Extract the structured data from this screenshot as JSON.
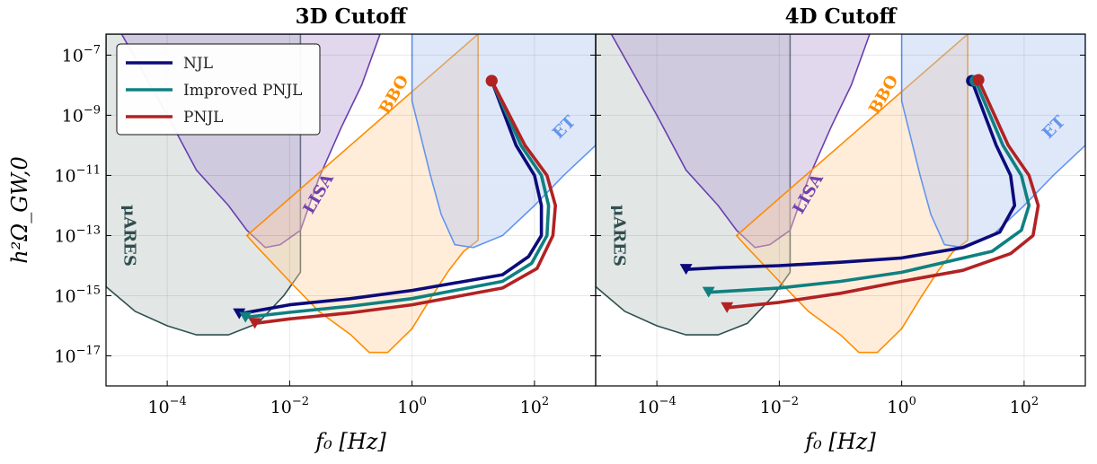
{
  "chart_data": {
    "type": "line",
    "ylabel": "h²Ω_GW,0",
    "xlabel": "f₀ [Hz]",
    "log_x": true,
    "log_y": true,
    "xlim": [
      1e-05,
      1000
    ],
    "ylim": [
      1e-18,
      5e-07
    ],
    "grid": true,
    "legend": {
      "placement": "top-left",
      "entries": [
        {
          "name": "NJL",
          "color": "#0b0b7a"
        },
        {
          "name": "Improved PNJL",
          "color": "#0f8080"
        },
        {
          "name": "PNJL",
          "color": "#b22222"
        }
      ]
    },
    "regions": [
      {
        "name": "μARES",
        "fill": "#b9c6c3",
        "edge": "#2f4f4f",
        "text_color": "#2f4f4f",
        "points": [
          [
            1e-05,
            2e-15
          ],
          [
            3e-05,
            3e-16
          ],
          [
            0.0001,
            1e-16
          ],
          [
            0.0003,
            5e-17
          ],
          [
            0.001,
            5e-17
          ],
          [
            0.003,
            1.2e-16
          ],
          [
            0.008,
            1e-15
          ],
          [
            0.015,
            6e-15
          ],
          [
            0.015,
            5e-07
          ],
          [
            1e-05,
            5e-07
          ]
        ]
      },
      {
        "name": "LISA",
        "fill": "#b7a3d3",
        "edge": "#6a3fb0",
        "text_color": "#7040b0",
        "points": [
          [
            1.8e-05,
            5e-07
          ],
          [
            0.0001,
            1e-09
          ],
          [
            0.0003,
            1.5e-11
          ],
          [
            0.001,
            1e-12
          ],
          [
            0.002,
            1.5e-13
          ],
          [
            0.004,
            4e-14
          ],
          [
            0.007,
            5e-14
          ],
          [
            0.015,
            1.5e-13
          ],
          [
            0.03,
            8e-12
          ],
          [
            0.07,
            4e-10
          ],
          [
            0.15,
            1e-08
          ],
          [
            0.3,
            5e-07
          ]
        ]
      },
      {
        "name": "BBO",
        "fill": "#ffd5a8",
        "edge": "#ff8c00",
        "text_color": "#ff8c00",
        "points": [
          [
            0.002,
            1e-13
          ],
          [
            0.003,
            4e-14
          ],
          [
            0.01,
            3e-15
          ],
          [
            0.03,
            3e-16
          ],
          [
            0.1,
            5e-17
          ],
          [
            0.2,
            1.3e-17
          ],
          [
            0.4,
            1.3e-17
          ],
          [
            1,
            8e-17
          ],
          [
            2,
            8e-16
          ],
          [
            4,
            7e-15
          ],
          [
            7,
            3e-14
          ],
          [
            12,
            7e-14
          ],
          [
            12,
            5e-07
          ],
          [
            0,
            0
          ]
        ]
      },
      {
        "name": "ET",
        "fill": "#b3c8f0",
        "edge": "#6495ed",
        "text_color": "#6495ed",
        "points": [
          [
            1,
            5e-07
          ],
          [
            1,
            3e-09
          ],
          [
            2,
            1e-11
          ],
          [
            3,
            5e-13
          ],
          [
            5,
            5e-14
          ],
          [
            10,
            4e-14
          ],
          [
            30,
            1e-13
          ],
          [
            100,
            1e-12
          ],
          [
            300,
            1e-11
          ],
          [
            1000,
            1e-10
          ],
          [
            1000,
            5e-07
          ]
        ]
      }
    ],
    "panels": [
      {
        "title": "3D Cutoff",
        "series": [
          {
            "name": "NJL",
            "color": "#0b0b7a",
            "points": [
              [
                20,
                1.4e-08
              ],
              [
                50,
                1e-10
              ],
              [
                100,
                1e-11
              ],
              [
                130,
                1e-12
              ],
              [
                130,
                1e-13
              ],
              [
                80,
                2e-14
              ],
              [
                30,
                5e-15
              ],
              [
                1,
                1.5e-15
              ],
              [
                0.1,
                8e-16
              ],
              [
                0.01,
                5e-16
              ],
              [
                0.0015,
                2.5e-16
              ]
            ]
          },
          {
            "name": "Improved PNJL",
            "color": "#0f8080",
            "points": [
              [
                20,
                1.4e-08
              ],
              [
                60,
                1e-10
              ],
              [
                130,
                1e-11
              ],
              [
                170,
                1e-12
              ],
              [
                160,
                1e-13
              ],
              [
                90,
                1.2e-14
              ],
              [
                30,
                3e-15
              ],
              [
                1,
                8e-16
              ],
              [
                0.1,
                4.5e-16
              ],
              [
                0.01,
                2.8e-16
              ],
              [
                0.0019,
                1.9e-16
              ]
            ]
          },
          {
            "name": "PNJL",
            "color": "#b22222",
            "points": [
              [
                20,
                1.4e-08
              ],
              [
                70,
                1e-10
              ],
              [
                160,
                1e-11
              ],
              [
                220,
                1e-12
              ],
              [
                200,
                1e-13
              ],
              [
                110,
                8e-15
              ],
              [
                30,
                1.8e-15
              ],
              [
                1,
                5e-16
              ],
              [
                0.1,
                2.7e-16
              ],
              [
                0.01,
                1.7e-16
              ],
              [
                0.0027,
                1.2e-16
              ]
            ]
          }
        ]
      },
      {
        "title": "4D Cutoff",
        "series": [
          {
            "name": "NJL",
            "color": "#0b0b7a",
            "points": [
              [
                14,
                1.4e-08
              ],
              [
                35,
                1e-10
              ],
              [
                60,
                1e-11
              ],
              [
                70,
                1e-12
              ],
              [
                40,
                1.3e-13
              ],
              [
                10,
                4e-14
              ],
              [
                1,
                1.8e-14
              ],
              [
                0.1,
                1.3e-14
              ],
              [
                0.01,
                1e-14
              ],
              [
                0.001,
                8.5e-15
              ],
              [
                0.0003,
                7.5e-15
              ]
            ]
          },
          {
            "name": "Improved PNJL",
            "color": "#0f8080",
            "points": [
              [
                16,
                1.4e-08
              ],
              [
                45,
                1e-10
              ],
              [
                90,
                1e-11
              ],
              [
                120,
                1e-12
              ],
              [
                90,
                1.5e-13
              ],
              [
                30,
                3e-14
              ],
              [
                1,
                6e-15
              ],
              [
                0.1,
                3e-15
              ],
              [
                0.01,
                1.8e-15
              ],
              [
                0.0007,
                1.3e-15
              ]
            ]
          },
          {
            "name": "PNJL",
            "color": "#b22222",
            "points": [
              [
                18,
                1.5e-08
              ],
              [
                55,
                1e-10
              ],
              [
                120,
                1e-11
              ],
              [
                170,
                1e-12
              ],
              [
                140,
                1e-13
              ],
              [
                60,
                2.5e-14
              ],
              [
                10,
                7e-15
              ],
              [
                1,
                3e-15
              ],
              [
                0.1,
                1.2e-15
              ],
              [
                0.01,
                6e-16
              ],
              [
                0.0014,
                4e-16
              ]
            ]
          }
        ]
      }
    ]
  }
}
